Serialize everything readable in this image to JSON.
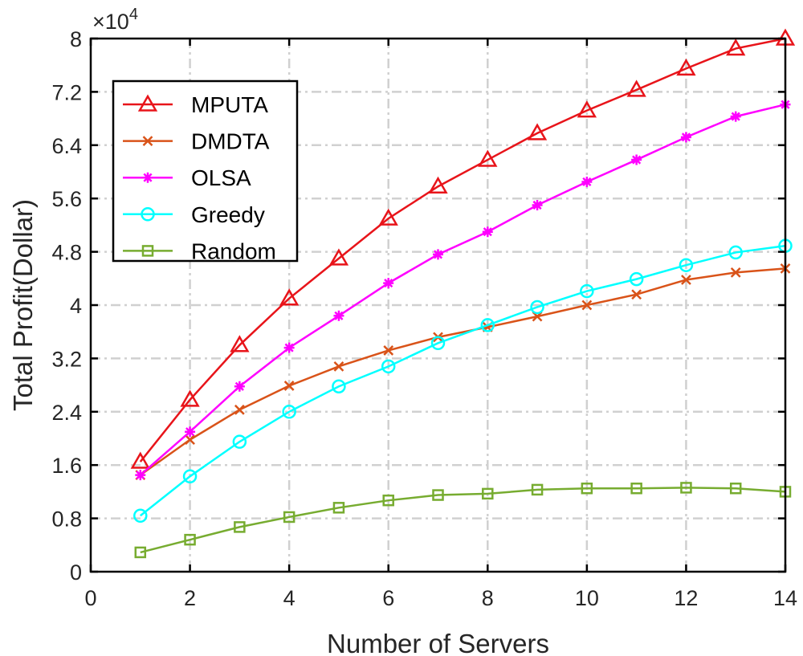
{
  "chart_data": {
    "type": "line",
    "title": "",
    "xlabel": "Number of Servers",
    "ylabel": "Total Profit(Dollar)",
    "y_exponent_label": "×10",
    "y_exponent_power": "4",
    "xlim": [
      0,
      14
    ],
    "ylim": [
      0,
      8
    ],
    "x_ticks": [
      "0",
      "2",
      "4",
      "6",
      "8",
      "10",
      "12",
      "14"
    ],
    "y_ticks": [
      "0",
      "0.8",
      "1.6",
      "2.4",
      "3.2",
      "4",
      "4.8",
      "5.6",
      "6.4",
      "7.2",
      "8"
    ],
    "y_unit_scale": 10000,
    "grid": true,
    "legend_position": "top-left",
    "x": [
      1,
      2,
      3,
      4,
      5,
      6,
      7,
      8,
      9,
      10,
      11,
      12,
      13,
      14
    ],
    "series": [
      {
        "name": "MPUTA",
        "color": "#e8141a",
        "marker": "triangle",
        "values": [
          1.65,
          2.58,
          3.4,
          4.1,
          4.7,
          5.3,
          5.78,
          6.18,
          6.58,
          6.92,
          7.23,
          7.55,
          7.85,
          8.0
        ]
      },
      {
        "name": "DMDTA",
        "color": "#d95319",
        "marker": "x",
        "values": [
          1.45,
          1.98,
          2.43,
          2.79,
          3.08,
          3.32,
          3.52,
          3.67,
          3.83,
          4.0,
          4.16,
          4.38,
          4.49,
          4.55
        ]
      },
      {
        "name": "OLSA",
        "color": "#ff00ff",
        "marker": "star",
        "values": [
          1.45,
          2.1,
          2.78,
          3.36,
          3.84,
          4.33,
          4.76,
          5.1,
          5.5,
          5.85,
          6.18,
          6.52,
          6.83,
          7.01
        ]
      },
      {
        "name": "Greedy",
        "color": "#00ffff",
        "marker": "circle",
        "values": [
          0.84,
          1.43,
          1.95,
          2.4,
          2.78,
          3.08,
          3.43,
          3.7,
          3.97,
          4.21,
          4.39,
          4.6,
          4.79,
          4.89
        ]
      },
      {
        "name": "Random",
        "color": "#77ac30",
        "marker": "square",
        "values": [
          0.29,
          0.48,
          0.67,
          0.82,
          0.96,
          1.07,
          1.15,
          1.17,
          1.23,
          1.25,
          1.25,
          1.26,
          1.25,
          1.2
        ]
      }
    ]
  }
}
